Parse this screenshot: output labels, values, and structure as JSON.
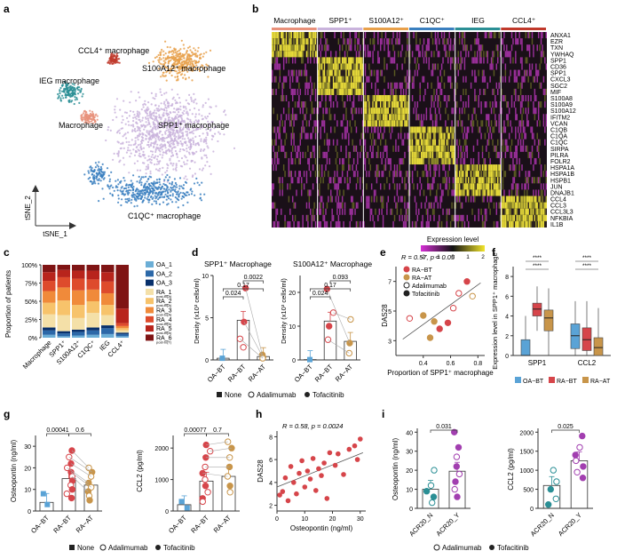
{
  "panel_a": {
    "letter": "a",
    "axis_y": "tSNE_2",
    "axis_x": "tSNE_1",
    "clusters": [
      {
        "label": "CCL4⁺ macrophage",
        "color": "#c0392b"
      },
      {
        "label": "S100A12⁺ macrophage",
        "color": "#e8a04a"
      },
      {
        "label": "IEG macrophage",
        "color": "#2b8f95"
      },
      {
        "label": "Macrophage",
        "color": "#e8907a"
      },
      {
        "label": "SPP1⁺ macrophage",
        "color": "#c9b3dc"
      },
      {
        "label": "C1QC⁺ macrophage",
        "color": "#3a7fbf"
      }
    ]
  },
  "panel_b": {
    "letter": "b",
    "groups": [
      {
        "label": "Macrophage",
        "color": "#e8907a"
      },
      {
        "label": "SPP1⁺",
        "color": "#c9b3dc"
      },
      {
        "label": "S100A12⁺",
        "color": "#e8a04a"
      },
      {
        "label": "C1QC⁺",
        "color": "#3a7fbf"
      },
      {
        "label": "IEG",
        "color": "#2b8f95"
      },
      {
        "label": "CCL4⁺",
        "color": "#c0392b"
      }
    ],
    "genes": [
      "ANXA1",
      "EZR",
      "TXN",
      "YWHAQ",
      "SPP1",
      "CD36",
      "SPP1",
      "CXCL3",
      "SGC2",
      "MIF",
      "S100A8",
      "S100A9",
      "S100A12",
      "IFITM2",
      "VCAN",
      "C1QB",
      "C1QA",
      "C1QC",
      "SIRPA",
      "PILRA",
      "FOLR2",
      "HSPA1A",
      "HSPA1B",
      "HSPB1",
      "JUN",
      "DNAJB1",
      "CCL4",
      "CCL3",
      "CCL3L3",
      "NFKBIA",
      "IL1B"
    ],
    "legend_title": "Expression level",
    "legend_ticks": [
      "-2",
      "-1",
      "0",
      "1",
      "2"
    ]
  },
  "panel_c": {
    "letter": "c",
    "ylabel": "Proportion of patients",
    "yticks": [
      "0%",
      "25%",
      "50%",
      "75%",
      "100%"
    ],
    "categories": [
      "Macrophage",
      "SPP1⁺",
      "S100A12⁺",
      "C1QC⁺",
      "IEG",
      "CCL4⁺"
    ],
    "legend": [
      {
        "label": "OA_1",
        "sub": "",
        "color": "#6baed6"
      },
      {
        "label": "OA_2",
        "sub": "",
        "color": "#2c68a8"
      },
      {
        "label": "OA_3",
        "sub": "",
        "color": "#08306b"
      },
      {
        "label": "RA_1",
        "sub": "post-tx(A)",
        "color": "#f4e0a8"
      },
      {
        "label": "RA_2",
        "sub": "post-tx(A)",
        "color": "#f7c36b"
      },
      {
        "label": "RA_3",
        "sub": "post-tx(A)",
        "color": "#f08a3a"
      },
      {
        "label": "RA_4",
        "sub": "post-tx(A)",
        "color": "#de4b2c"
      },
      {
        "label": "RA_5",
        "sub": "post-tx(A)",
        "color": "#b8241c"
      },
      {
        "label": "RA_6",
        "sub": "post-tx(T)",
        "color": "#7f1414"
      }
    ]
  },
  "panel_d": {
    "letter": "d",
    "titles": [
      "SPP1⁺ Macrophage",
      "S100A12⁺ Macrophage"
    ],
    "ylabels": [
      "Density (x10³ cells/ml)",
      "Density (x10³ cells/ml)"
    ],
    "categories": [
      "OA−BT",
      "RA−BT",
      "RA−AT"
    ],
    "pvalues_left": [
      "0.0022",
      "0.17",
      "0.024"
    ],
    "pvalues_right": [
      "0.093",
      "0.17",
      "0.024"
    ],
    "legend": [
      "None",
      "Adalimumab",
      "Tofacitinib"
    ]
  },
  "chart_data": [
    {
      "panel": "c",
      "type": "bar",
      "stacked": true,
      "categories": [
        "Macrophage",
        "SPP1⁺",
        "S100A12⁺",
        "C1QC⁺",
        "IEG",
        "CCL4⁺"
      ],
      "series": [
        {
          "name": "OA_1",
          "values": [
            4,
            2,
            3,
            4,
            5,
            2
          ]
        },
        {
          "name": "OA_2",
          "values": [
            6,
            4,
            5,
            6,
            8,
            3
          ]
        },
        {
          "name": "OA_3",
          "values": [
            4,
            3,
            3,
            4,
            4,
            2
          ]
        },
        {
          "name": "RA_1",
          "values": [
            18,
            22,
            16,
            20,
            14,
            3
          ]
        },
        {
          "name": "RA_2",
          "values": [
            16,
            20,
            18,
            16,
            14,
            3
          ]
        },
        {
          "name": "RA_3",
          "values": [
            16,
            18,
            20,
            16,
            16,
            3
          ]
        },
        {
          "name": "RA_4",
          "values": [
            14,
            14,
            16,
            14,
            16,
            4
          ]
        },
        {
          "name": "RA_5",
          "values": [
            12,
            10,
            11,
            12,
            13,
            20
          ]
        },
        {
          "name": "RA_6",
          "values": [
            10,
            7,
            8,
            8,
            10,
            60
          ]
        }
      ],
      "ylim": [
        0,
        100
      ]
    },
    {
      "panel": "d-left",
      "type": "bar",
      "title": "SPP1⁺ Macrophage",
      "categories": [
        "OA−BT",
        "RA−BT",
        "RA−AT"
      ],
      "values": [
        0.2,
        4.7,
        0.4
      ],
      "ylim": [
        0,
        10
      ]
    },
    {
      "panel": "d-right",
      "type": "bar",
      "title": "S100A12⁺ Macrophage",
      "categories": [
        "OA−BT",
        "RA−BT",
        "RA−AT"
      ],
      "values": [
        0.1,
        11.5,
        5.5
      ],
      "ylim": [
        0,
        25
      ]
    },
    {
      "panel": "e",
      "type": "scatter",
      "xlabel": "Proportion of SPP1⁺ macrophage",
      "ylabel": "DAS28",
      "annotation": "R = 0.57, p = 0.05",
      "xticks": [
        "0.4",
        "0.6",
        "0.8"
      ],
      "yticks": [
        "3",
        "5",
        "7"
      ],
      "xlim": [
        0.2,
        0.85
      ],
      "ylim": [
        2,
        8
      ],
      "legend": [
        "RA−BT",
        "RA−AT",
        "Adalimumab",
        "Tofacitinib"
      ],
      "points": [
        {
          "x": 0.3,
          "y": 4.5,
          "group": "RA-BT",
          "drug": "Adalimumab"
        },
        {
          "x": 0.4,
          "y": 4.7,
          "group": "RA-AT",
          "drug": "Adalimumab"
        },
        {
          "x": 0.45,
          "y": 3.2,
          "group": "RA-AT",
          "drug": "Adalimumab"
        },
        {
          "x": 0.52,
          "y": 3.8,
          "group": "RA-BT",
          "drug": "Adalimumab"
        },
        {
          "x": 0.58,
          "y": 4.2,
          "group": "RA-BT",
          "drug": "Tofacitinib"
        },
        {
          "x": 0.62,
          "y": 5.2,
          "group": "RA-BT",
          "drug": "Adalimumab"
        },
        {
          "x": 0.66,
          "y": 6.2,
          "group": "RA-BT",
          "drug": "Adalimumab"
        },
        {
          "x": 0.72,
          "y": 7.0,
          "group": "RA-BT",
          "drug": "Tofacitinib"
        },
        {
          "x": 0.76,
          "y": 6.0,
          "group": "RA-AT",
          "drug": "Adalimumab"
        },
        {
          "x": 0.48,
          "y": 4.3,
          "group": "RA-AT",
          "drug": "Tofacitinib"
        }
      ]
    },
    {
      "panel": "f",
      "type": "box",
      "ylabel": "Expression level in SPP1⁺ macrophage",
      "categories": [
        "SPP1",
        "CCL2"
      ],
      "groups": [
        "OA−BT",
        "RA−BT",
        "RA−AT"
      ],
      "significance": [
        "****",
        "****",
        "****",
        "****",
        "****",
        "****"
      ],
      "boxes": [
        {
          "cat": "SPP1",
          "group": "OA-BT",
          "q1": 0.0,
          "median": 0.0,
          "q3": 1.6,
          "lo": 0.0,
          "hi": 4.0
        },
        {
          "cat": "SPP1",
          "group": "RA-BT",
          "q1": 4.0,
          "median": 4.7,
          "q3": 5.3,
          "lo": 2.5,
          "hi": 7.0
        },
        {
          "cat": "SPP1",
          "group": "RA-AT",
          "q1": 2.5,
          "median": 3.8,
          "q3": 4.6,
          "lo": 0.0,
          "hi": 6.8
        },
        {
          "cat": "CCL2",
          "group": "OA-BT",
          "q1": 0.7,
          "median": 2.0,
          "q3": 3.2,
          "lo": 0.0,
          "hi": 5.5
        },
        {
          "cat": "CCL2",
          "group": "RA-BT",
          "q1": 0.5,
          "median": 1.6,
          "q3": 2.8,
          "lo": 0.0,
          "hi": 5.5
        },
        {
          "cat": "CCL2",
          "group": "RA-AT",
          "q1": 0.0,
          "median": 0.8,
          "q3": 1.8,
          "lo": 0.0,
          "hi": 4.8
        }
      ],
      "legend": [
        "OA−BT",
        "RA−BT",
        "RA−AT"
      ]
    },
    {
      "panel": "g-left",
      "type": "bar",
      "ylabel": "Osteopontin (ng/ml)",
      "categories": [
        "OA−BT",
        "RA−BT",
        "RA−AT"
      ],
      "values": [
        4,
        15,
        12
      ],
      "pvalues": [
        "0.00041",
        "0.6"
      ],
      "yticks": [
        "0",
        "10",
        "20",
        "30"
      ],
      "ylim": [
        0,
        35
      ]
    },
    {
      "panel": "g-right",
      "type": "bar",
      "ylabel": "CCL2 (pg/ml)",
      "categories": [
        "OA−BT",
        "RA−BT",
        "RA−AT"
      ],
      "values": [
        200,
        950,
        1100
      ],
      "pvalues": [
        "0.00077",
        "0.7"
      ],
      "yticks": [
        "0",
        "1000",
        "2000"
      ],
      "ylim": [
        0,
        2400
      ]
    },
    {
      "panel": "h",
      "type": "scatter",
      "xlabel": "Osteopontin (ng/ml)",
      "ylabel": "DAS28",
      "annotation": "R = 0.58, p = 0.0024",
      "xticks": [
        "0",
        "10",
        "20",
        "30"
      ],
      "yticks": [
        "2",
        "4",
        "6",
        "8"
      ],
      "xlim": [
        0,
        32
      ],
      "ylim": [
        1.5,
        8.5
      ],
      "points": [
        {
          "x": 2,
          "y": 3.2
        },
        {
          "x": 3,
          "y": 4.4
        },
        {
          "x": 4,
          "y": 2.4
        },
        {
          "x": 5,
          "y": 5.4
        },
        {
          "x": 6,
          "y": 4.0
        },
        {
          "x": 7,
          "y": 3.0
        },
        {
          "x": 8,
          "y": 4.8
        },
        {
          "x": 9,
          "y": 5.9
        },
        {
          "x": 10,
          "y": 3.6
        },
        {
          "x": 11,
          "y": 5.0
        },
        {
          "x": 12,
          "y": 4.3
        },
        {
          "x": 13,
          "y": 6.1
        },
        {
          "x": 14,
          "y": 3.3
        },
        {
          "x": 15,
          "y": 5.2
        },
        {
          "x": 16,
          "y": 4.6
        },
        {
          "x": 17,
          "y": 5.7
        },
        {
          "x": 18,
          "y": 2.6
        },
        {
          "x": 19,
          "y": 6.6
        },
        {
          "x": 21,
          "y": 5.5
        },
        {
          "x": 22,
          "y": 6.5
        },
        {
          "x": 24,
          "y": 4.7
        },
        {
          "x": 26,
          "y": 6.9
        },
        {
          "x": 28,
          "y": 7.2
        },
        {
          "x": 29,
          "y": 6.0
        },
        {
          "x": 30,
          "y": 7.8
        },
        {
          "x": 1,
          "y": 2.9
        }
      ]
    },
    {
      "panel": "i-left",
      "type": "bar",
      "ylabel": "Osteopontin (ng/ml)",
      "categories": [
        "ACR20_N",
        "ACR20_Y"
      ],
      "values": [
        10,
        19.5
      ],
      "pvalue": "0.031",
      "yticks": [
        "0",
        "10",
        "20",
        "30",
        "40"
      ],
      "ylim": [
        0,
        42
      ]
    },
    {
      "panel": "i-right",
      "type": "bar",
      "ylabel": "CCL2 (pg/ml)",
      "categories": [
        "ACR20_N",
        "ACR20_Y"
      ],
      "values": [
        600,
        1250
      ],
      "pvalue": "0.025",
      "yticks": [
        "0",
        "500",
        "1000",
        "1500",
        "2000"
      ],
      "ylim": [
        0,
        2100
      ]
    }
  ],
  "panel_e": {
    "letter": "e"
  },
  "panel_f": {
    "letter": "f"
  },
  "panel_g": {
    "letter": "g",
    "legend": [
      "None",
      "Adalimumab",
      "Tofacitinib"
    ]
  },
  "panel_h": {
    "letter": "h"
  },
  "panel_i": {
    "letter": "i",
    "legend": [
      "Adalimumab",
      "Tofacitinib"
    ]
  },
  "colors": {
    "oa": "#5aa3d6",
    "ra_bt": "#d6454a",
    "ra_at": "#c8954a",
    "purple": "#a23fb0",
    "teal": "#2b8f95"
  }
}
